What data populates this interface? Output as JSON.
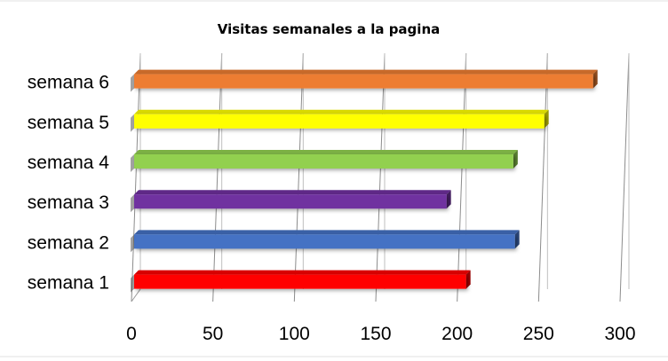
{
  "chart_data": {
    "type": "bar",
    "orientation": "horizontal",
    "title": "Visitas semanales a la pagina",
    "xlabel": "",
    "ylabel": "",
    "categories": [
      "semana 1",
      "semana 2",
      "semana 3",
      "semana 4",
      "semana 5",
      "semana 6"
    ],
    "values": [
      200,
      230,
      188,
      229,
      248,
      278
    ],
    "bar_colors": [
      "#ff0000",
      "#4472c4",
      "#7030a0",
      "#92d050",
      "#ffff00",
      "#ed7d31"
    ],
    "xlim": [
      0,
      300
    ],
    "x_ticks": [
      "0",
      "50",
      "100",
      "150",
      "200",
      "250",
      "300"
    ],
    "grid": true,
    "legend": "none",
    "style": "3d"
  }
}
